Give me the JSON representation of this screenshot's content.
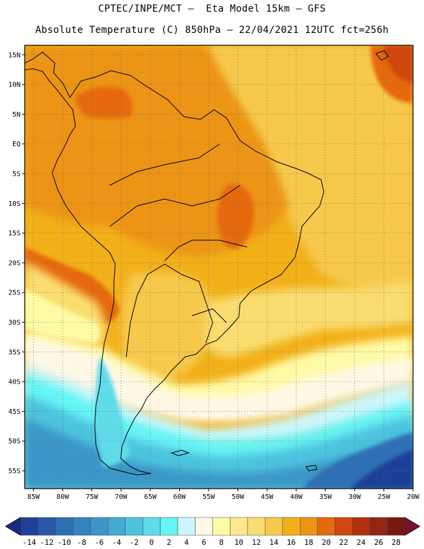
{
  "header": {
    "line1": "CPTEC/INPE/MCT –  Eta Model 15km – GFS",
    "line2": "Absolute Temperature (C) 850hPa – 22/04/2021 12UTC fct=256h"
  },
  "map": {
    "lat_labels": [
      "15N",
      "10N",
      "5N",
      "EQ",
      "5S",
      "10S",
      "15S",
      "20S",
      "25S",
      "30S",
      "35S",
      "40S",
      "45S",
      "50S",
      "55S"
    ],
    "lat_values": [
      15,
      10,
      5,
      0,
      -5,
      -10,
      -15,
      -20,
      -25,
      -30,
      -35,
      -40,
      -45,
      -50,
      -55
    ],
    "lon_labels": [
      "85W",
      "80W",
      "75W",
      "70W",
      "65W",
      "60W",
      "55W",
      "50W",
      "45W",
      "40W",
      "35W",
      "30W",
      "25W",
      "20W"
    ],
    "lon_values": [
      -85,
      -80,
      -75,
      -70,
      -65,
      -60,
      -55,
      -50,
      -45,
      -40,
      -35,
      -30,
      -25,
      -20
    ],
    "lat_range": [
      -58,
      16.6
    ],
    "lon_range": [
      -86.5,
      -20
    ],
    "gridlines": "dotted"
  },
  "colorbar": {
    "labels": [
      "-14",
      "-12",
      "-10",
      "-8",
      "-6",
      "-4",
      "-2",
      "0",
      "2",
      "4",
      "6",
      "8",
      "10",
      "12",
      "14",
      "16",
      "18",
      "20",
      "22",
      "24",
      "26",
      "28"
    ],
    "colors": [
      "#1f3f98",
      "#2a57a8",
      "#2f6fb4",
      "#3583bf",
      "#3b97c8",
      "#43abd2",
      "#4ec3de",
      "#5fdbe9",
      "#66f4f4",
      "#cdf6fa",
      "#fff8e5",
      "#fffaa6",
      "#fde890",
      "#fadd70",
      "#f6c94d",
      "#f2b019",
      "#ec9414",
      "#e56910",
      "#cf4711",
      "#b3310f",
      "#942514",
      "#761915"
    ],
    "arrow_left_color": "#1a2a82",
    "arrow_right_color": "#7a1030",
    "unit": "C"
  }
}
